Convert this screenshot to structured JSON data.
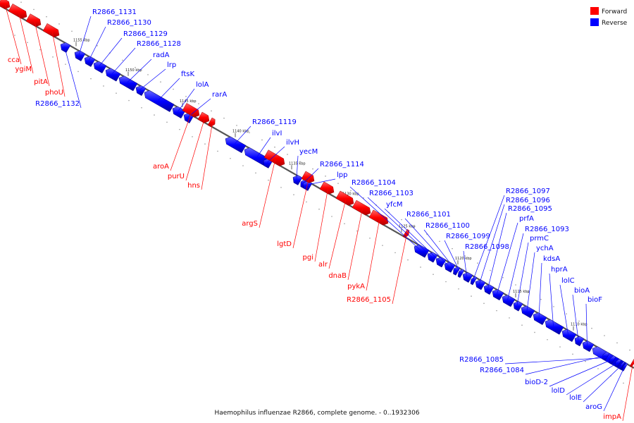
{
  "caption": "Haemophilus influenzae R2866, complete genome. - 0..1932306",
  "legend": [
    {
      "label": "Forward",
      "color": "#ff0000"
    },
    {
      "label": "Reverse",
      "color": "#0000ff"
    }
  ],
  "colors": {
    "forward": "#ff0000",
    "reverse": "#0000ff",
    "backbone": "#555555"
  },
  "scale_ticks": [
    "1155 kbp",
    "1150 kbp",
    "1145 kbp",
    "1140 kbp",
    "1135 kbp",
    "1130 kbp",
    "1125 kbp",
    "1120 kbp",
    "1115 kbp",
    "1110 kbp"
  ],
  "genes": [
    {
      "name": "cca",
      "strand": "forward"
    },
    {
      "name": "ygiM",
      "strand": "forward"
    },
    {
      "name": "pitA",
      "strand": "forward"
    },
    {
      "name": "phoU",
      "strand": "forward"
    },
    {
      "name": "R2866_1132",
      "strand": "reverse"
    },
    {
      "name": "R2866_1131",
      "strand": "reverse"
    },
    {
      "name": "R2866_1130",
      "strand": "reverse"
    },
    {
      "name": "R2866_1129",
      "strand": "reverse"
    },
    {
      "name": "R2866_1128",
      "strand": "reverse"
    },
    {
      "name": "radA",
      "strand": "reverse"
    },
    {
      "name": "lrp",
      "strand": "reverse"
    },
    {
      "name": "ftsK",
      "strand": "reverse"
    },
    {
      "name": "lolA",
      "strand": "reverse"
    },
    {
      "name": "rarA",
      "strand": "reverse"
    },
    {
      "name": "aroA",
      "strand": "forward"
    },
    {
      "name": "purU",
      "strand": "forward"
    },
    {
      "name": "hns",
      "strand": "forward"
    },
    {
      "name": "R2866_1119",
      "strand": "reverse"
    },
    {
      "name": "ilvI",
      "strand": "reverse"
    },
    {
      "name": "ilvH",
      "strand": "reverse"
    },
    {
      "name": "yecM",
      "strand": "reverse"
    },
    {
      "name": "R2866_1114",
      "strand": "reverse"
    },
    {
      "name": "lpp",
      "strand": "reverse"
    },
    {
      "name": "argS",
      "strand": "forward"
    },
    {
      "name": "lgtD",
      "strand": "forward"
    },
    {
      "name": "pgi",
      "strand": "forward"
    },
    {
      "name": "alr",
      "strand": "forward"
    },
    {
      "name": "dnaB",
      "strand": "forward"
    },
    {
      "name": "pykA",
      "strand": "forward"
    },
    {
      "name": "R2866_1105",
      "strand": "forward"
    },
    {
      "name": "R2866_1104",
      "strand": "reverse"
    },
    {
      "name": "R2866_1103",
      "strand": "reverse"
    },
    {
      "name": "yfcM",
      "strand": "reverse"
    },
    {
      "name": "R2866_1101",
      "strand": "reverse"
    },
    {
      "name": "R2866_1100",
      "strand": "reverse"
    },
    {
      "name": "R2866_1099",
      "strand": "reverse"
    },
    {
      "name": "R2866_1098",
      "strand": "reverse"
    },
    {
      "name": "R2866_1097",
      "strand": "reverse"
    },
    {
      "name": "R2866_1096",
      "strand": "reverse"
    },
    {
      "name": "R2866_1095",
      "strand": "reverse"
    },
    {
      "name": "prfA",
      "strand": "reverse"
    },
    {
      "name": "R2866_1093",
      "strand": "reverse"
    },
    {
      "name": "prmC",
      "strand": "reverse"
    },
    {
      "name": "ychA",
      "strand": "reverse"
    },
    {
      "name": "kdsA",
      "strand": "reverse"
    },
    {
      "name": "hprA",
      "strand": "reverse"
    },
    {
      "name": "lolC",
      "strand": "reverse"
    },
    {
      "name": "bioA",
      "strand": "reverse"
    },
    {
      "name": "bioF",
      "strand": "reverse"
    },
    {
      "name": "R2866_1085",
      "strand": "reverse"
    },
    {
      "name": "R2866_1084",
      "strand": "reverse"
    },
    {
      "name": "bioD-2",
      "strand": "reverse"
    },
    {
      "name": "lolD",
      "strand": "reverse"
    },
    {
      "name": "lolE",
      "strand": "reverse"
    },
    {
      "name": "aroG",
      "strand": "reverse"
    },
    {
      "name": "impA",
      "strand": "forward"
    }
  ]
}
